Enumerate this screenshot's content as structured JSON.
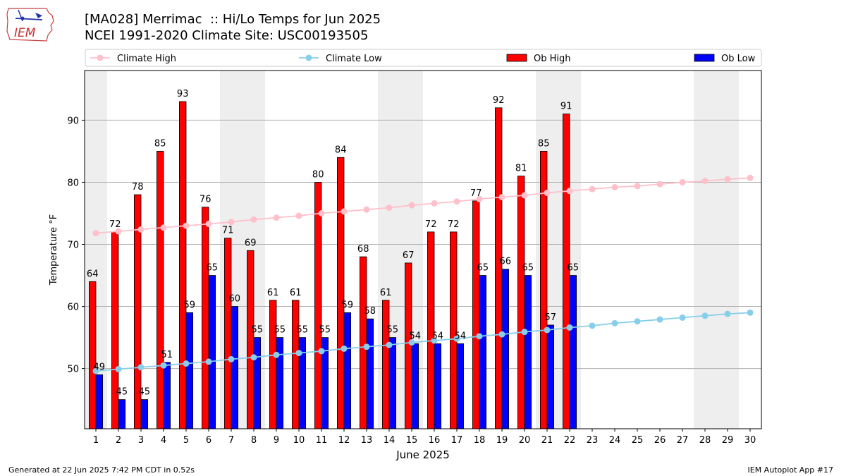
{
  "header": {
    "title_line1": "[MA028] Merrimac  :: Hi/Lo Temps for Jun 2025",
    "title_line2": "NCEI 1991-2020 Climate Site: USC00193505",
    "logo_text": "IEM"
  },
  "footer": {
    "generated": "Generated at 22 Jun 2025 7:42 PM CDT in 0.52s",
    "app": "IEM Autoplot App #17"
  },
  "colors": {
    "ob_high": "#ff0000",
    "ob_low": "#0000ff",
    "climate_high": "#ffc0cb",
    "climate_low": "#87ceeb",
    "weekend_shade": "#eeeeee",
    "grid": "#b0b0b0"
  },
  "chart_data": {
    "type": "bar",
    "xlabel": "June 2025",
    "ylabel": "Temperature °F",
    "ylim": [
      40.3,
      98
    ],
    "xlim": [
      0.5,
      30.5
    ],
    "yticks": [
      50,
      60,
      70,
      80,
      90
    ],
    "grid": "horizontal",
    "legend_position": "top",
    "days": [
      1,
      2,
      3,
      4,
      5,
      6,
      7,
      8,
      9,
      10,
      11,
      12,
      13,
      14,
      15,
      16,
      17,
      18,
      19,
      20,
      21,
      22,
      23,
      24,
      25,
      26,
      27,
      28,
      29,
      30
    ],
    "shaded_days": [
      1,
      7,
      8,
      14,
      15,
      21,
      22,
      28,
      29
    ],
    "series": [
      {
        "name": "Climate High",
        "kind": "line",
        "values": [
          71.8,
          72.1,
          72.4,
          72.7,
          73.0,
          73.3,
          73.6,
          74.0,
          74.3,
          74.6,
          75.0,
          75.3,
          75.6,
          75.9,
          76.3,
          76.6,
          76.9,
          77.3,
          77.6,
          77.9,
          78.3,
          78.6,
          78.9,
          79.2,
          79.4,
          79.7,
          80.0,
          80.2,
          80.5,
          80.7
        ]
      },
      {
        "name": "Climate Low",
        "kind": "line",
        "values": [
          49.6,
          49.9,
          50.2,
          50.5,
          50.8,
          51.1,
          51.5,
          51.8,
          52.2,
          52.5,
          52.8,
          53.2,
          53.5,
          53.8,
          54.2,
          54.5,
          54.8,
          55.2,
          55.5,
          55.9,
          56.2,
          56.6,
          56.9,
          57.3,
          57.6,
          57.9,
          58.2,
          58.5,
          58.8,
          59.0
        ]
      },
      {
        "name": "Ob High",
        "kind": "bar",
        "values": [
          64,
          72,
          78,
          85,
          93,
          76,
          71,
          69,
          61,
          61,
          80,
          84,
          68,
          61,
          67,
          72,
          72,
          77,
          92,
          81,
          85,
          91
        ]
      },
      {
        "name": "Ob Low",
        "kind": "bar",
        "values": [
          49,
          45,
          45,
          51,
          59,
          65,
          60,
          55,
          55,
          55,
          55,
          59,
          58,
          55,
          54,
          54,
          54,
          65,
          66,
          65,
          57,
          65
        ]
      }
    ]
  }
}
